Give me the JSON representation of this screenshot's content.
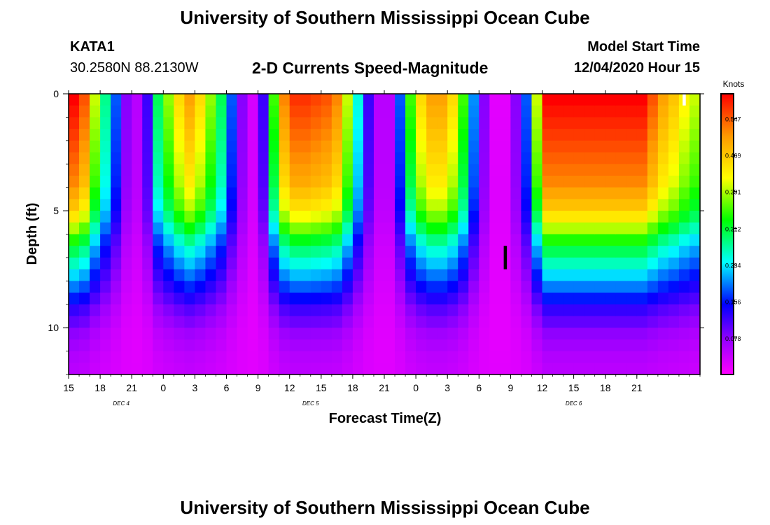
{
  "header": {
    "title": "University of Southern Mississippi Ocean Cube",
    "station": "KATA1",
    "coords": "30.2580N 88.2130W",
    "product": "2-D Currents Speed-Magnitude",
    "model_label": "Model Start Time",
    "model_time": "12/04/2020 Hour 15",
    "footer_title": "University of Southern Mississippi Ocean Cube"
  },
  "chart_data": {
    "type": "heatmap",
    "title": "2-D Currents Speed-Magnitude",
    "xlabel": "Forecast Time(Z)",
    "ylabel": "Depth (ft)",
    "x_start_hour": 15,
    "x_end_hour": 75,
    "x_ticks": [
      {
        "hour": 15,
        "label": "15"
      },
      {
        "hour": 18,
        "label": "18"
      },
      {
        "hour": 21,
        "label": "21"
      },
      {
        "hour": 24,
        "label": "0"
      },
      {
        "hour": 27,
        "label": "3"
      },
      {
        "hour": 30,
        "label": "6"
      },
      {
        "hour": 33,
        "label": "9"
      },
      {
        "hour": 36,
        "label": "12"
      },
      {
        "hour": 39,
        "label": "15"
      },
      {
        "hour": 42,
        "label": "18"
      },
      {
        "hour": 45,
        "label": "21"
      },
      {
        "hour": 48,
        "label": "0"
      },
      {
        "hour": 51,
        "label": "3"
      },
      {
        "hour": 54,
        "label": "6"
      },
      {
        "hour": 57,
        "label": "9"
      },
      {
        "hour": 60,
        "label": "12"
      },
      {
        "hour": 63,
        "label": "15"
      },
      {
        "hour": 66,
        "label": "18"
      },
      {
        "hour": 69,
        "label": "21"
      }
    ],
    "date_labels": [
      {
        "hour": 20,
        "label": "DEC 4"
      },
      {
        "hour": 38,
        "label": "DEC 5"
      },
      {
        "hour": 63,
        "label": "DEC 6"
      }
    ],
    "y_range_ft": [
      0,
      12
    ],
    "y_ticks": [
      0,
      5,
      10
    ],
    "colorbar": {
      "unit": "Knots",
      "min": 0.0,
      "max": 0.6,
      "ticks": [
        "0.547",
        "0.469",
        "0.391",
        "0.312",
        "0.234",
        "0.156",
        "0.078"
      ],
      "tick_values": [
        0.547,
        0.469,
        0.391,
        0.312,
        0.234,
        0.156,
        0.078
      ]
    },
    "surface_speed_by_hour_knots": [
      0.6,
      0.55,
      0.4,
      0.28,
      0.18,
      0.08,
      0.05,
      0.12,
      0.3,
      0.38,
      0.45,
      0.5,
      0.45,
      0.38,
      0.3,
      0.18,
      0.08,
      0.03,
      0.12,
      0.35,
      0.52,
      0.57,
      0.57,
      0.56,
      0.55,
      0.52,
      0.4,
      0.25,
      0.12,
      0.05,
      0.05,
      0.18,
      0.35,
      0.45,
      0.5,
      0.5,
      0.45,
      0.35,
      0.2,
      0.08,
      0.02,
      0.02,
      0.08,
      0.18,
      0.4,
      0.6,
      0.6,
      0.6,
      0.6,
      0.6,
      0.6,
      0.6,
      0.6,
      0.6,
      0.6,
      0.55,
      0.5,
      0.47,
      0.43,
      0.4
    ],
    "depth_decay_per_cell": [
      1.0,
      0.98,
      0.96,
      0.94,
      0.92,
      0.9,
      0.88,
      0.86,
      0.82,
      0.78,
      0.72,
      0.64,
      0.55,
      0.48,
      0.42,
      0.36,
      0.3,
      0.24,
      0.18,
      0.14,
      0.1,
      0.08,
      0.06,
      0.05
    ],
    "missing_cells": [
      {
        "hour": 56,
        "depth_ft": 6.5,
        "depth2_ft": 7.5
      },
      {
        "hour": 73,
        "depth_ft": 0,
        "depth2_ft": 0.5
      }
    ]
  }
}
